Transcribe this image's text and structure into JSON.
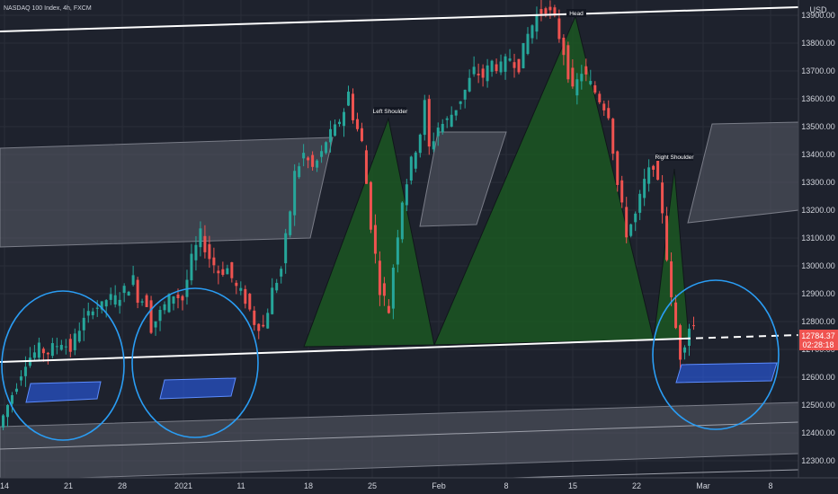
{
  "header": {
    "title": "NASDAQ 100 Index, 4h, FXCM"
  },
  "price_axis": {
    "currency": "USD",
    "ticks": [
      "13900.00",
      "13800.00",
      "13700.00",
      "13600.00",
      "13500.00",
      "13400.00",
      "13300.00",
      "13200.00",
      "13100.00",
      "13000.00",
      "12900.00",
      "12800.00",
      "12700.00",
      "12600.00",
      "12500.00",
      "12400.00",
      "12300.00"
    ],
    "last_price": "12784.37",
    "countdown": "02:28:18"
  },
  "time_axis": {
    "ticks": [
      "14",
      "21",
      "28",
      "2021",
      "11",
      "18",
      "25",
      "Feb",
      "8",
      "15",
      "22",
      "Mar",
      "8"
    ]
  },
  "annotations": {
    "left_shoulder": "Left Shoulder",
    "head": "Head",
    "right_shoulder": "Right Shoulder"
  },
  "colors": {
    "background": "#1e222d",
    "up_candle": "#26a69a",
    "down_candle": "#ef5350",
    "neckline": "#ffffff",
    "pattern_fill": "#1b5e20",
    "zone_fill": "#5a5d68",
    "demand_box": "#2962ff",
    "circle": "#2a9df4",
    "last_price_bg": "#ef5350"
  },
  "chart_data": {
    "type": "candlestick",
    "title": "NASDAQ 100 Index, 4h, FXCM",
    "ylabel": "USD",
    "ylim": [
      12300,
      13960
    ],
    "series": [
      {
        "name": "",
        "path": [
          [
            0,
            12420
          ],
          [
            3,
            12540
          ],
          [
            6,
            12660
          ],
          [
            9,
            12700
          ],
          [
            11,
            12690
          ],
          [
            14,
            12730
          ],
          [
            16,
            12700
          ],
          [
            18,
            12780
          ],
          [
            20,
            12820
          ],
          [
            21,
            12860
          ],
          [
            23,
            12850
          ],
          [
            24,
            12880
          ],
          [
            26,
            12880
          ],
          [
            28,
            12910
          ],
          [
            30,
            12950
          ],
          [
            31,
            12890
          ],
          [
            33,
            12870
          ],
          [
            34,
            12780
          ],
          [
            36,
            12830
          ],
          [
            38,
            12880
          ],
          [
            39,
            12900
          ],
          [
            41,
            12880
          ],
          [
            43,
            13020
          ],
          [
            45,
            13110
          ],
          [
            47,
            13030
          ],
          [
            49,
            12980
          ],
          [
            51,
            12990
          ],
          [
            53,
            12920
          ],
          [
            55,
            12880
          ],
          [
            57,
            12800
          ],
          [
            59,
            12780
          ],
          [
            61,
            12910
          ],
          [
            63,
            12990
          ],
          [
            65,
            13200
          ],
          [
            66,
            13330
          ],
          [
            68,
            13400
          ],
          [
            70,
            13350
          ],
          [
            72,
            13400
          ],
          [
            73,
            13450
          ],
          [
            75,
            13490
          ],
          [
            77,
            13560
          ],
          [
            78,
            13620
          ],
          [
            79,
            13540
          ],
          [
            81,
            13440
          ],
          [
            83,
            13150
          ],
          [
            85,
            12920
          ],
          [
            87,
            12840
          ],
          [
            88,
            13000
          ],
          [
            90,
            13240
          ],
          [
            92,
            13370
          ],
          [
            94,
            13480
          ],
          [
            95,
            13580
          ],
          [
            96,
            13420
          ],
          [
            98,
            13500
          ],
          [
            100,
            13520
          ],
          [
            102,
            13570
          ],
          [
            104,
            13630
          ],
          [
            106,
            13700
          ],
          [
            108,
            13680
          ],
          [
            110,
            13730
          ],
          [
            112,
            13710
          ],
          [
            114,
            13750
          ],
          [
            116,
            13720
          ],
          [
            118,
            13830
          ],
          [
            120,
            13900
          ],
          [
            122,
            13930
          ],
          [
            124,
            13880
          ],
          [
            126,
            13770
          ],
          [
            128,
            13620
          ],
          [
            130,
            13700
          ],
          [
            132,
            13650
          ],
          [
            134,
            13600
          ],
          [
            136,
            13550
          ],
          [
            138,
            13290
          ],
          [
            140,
            13120
          ],
          [
            142,
            13180
          ],
          [
            144,
            13300
          ],
          [
            146,
            13370
          ],
          [
            148,
            13200
          ],
          [
            150,
            12870
          ],
          [
            152,
            12680
          ],
          [
            154,
            12784
          ]
        ]
      }
    ],
    "x_ticks": [
      "14",
      "21",
      "28",
      "2021",
      "11",
      "18",
      "25",
      "Feb",
      "8",
      "15",
      "22",
      "Mar",
      "8"
    ],
    "y_ticks": [
      13900,
      13800,
      13700,
      13600,
      13500,
      13400,
      13300,
      13200,
      13100,
      13000,
      12900,
      12800,
      12700,
      12600,
      12500,
      12400,
      12300
    ],
    "pattern": {
      "name": "head and shoulders",
      "left_shoulder_peak": 13600,
      "head_peak": 13940,
      "right_shoulder_peak": 13360
    },
    "last_price": 12784.37,
    "grid": true
  }
}
